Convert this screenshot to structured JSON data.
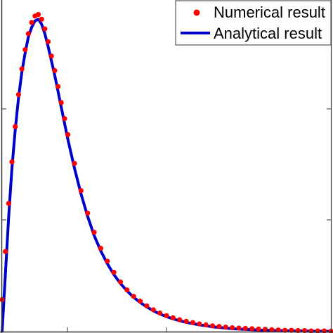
{
  "chart_data": {
    "type": "line",
    "title": "",
    "xlabel": "",
    "ylabel": "",
    "xlim": [
      0,
      1
    ],
    "ylim": [
      0,
      1
    ],
    "grid": false,
    "legend_position": "top-right",
    "series": [
      {
        "name": "Numerical result",
        "kind": "scatter",
        "color": "#ff0000",
        "x": [
          0.0,
          0.01,
          0.02,
          0.03,
          0.04,
          0.05,
          0.06,
          0.07,
          0.08,
          0.09,
          0.1,
          0.11,
          0.12,
          0.13,
          0.14,
          0.15,
          0.16,
          0.17,
          0.18,
          0.19,
          0.2,
          0.22,
          0.24,
          0.26,
          0.28,
          0.3,
          0.32,
          0.34,
          0.36,
          0.38,
          0.4,
          0.42,
          0.44,
          0.46,
          0.48,
          0.5,
          0.52,
          0.54,
          0.56,
          0.58,
          0.6,
          0.62,
          0.64,
          0.66,
          0.68,
          0.7,
          0.72,
          0.74,
          0.76,
          0.78,
          0.8,
          0.82,
          0.84,
          0.86,
          0.88,
          0.9,
          0.92,
          0.94,
          0.96,
          0.98,
          1.0
        ],
        "y": [
          0.1,
          0.25,
          0.4,
          0.53,
          0.64,
          0.74,
          0.82,
          0.88,
          0.93,
          0.965,
          0.985,
          0.99,
          0.975,
          0.945,
          0.905,
          0.86,
          0.815,
          0.765,
          0.715,
          0.665,
          0.615,
          0.525,
          0.44,
          0.37,
          0.31,
          0.26,
          0.22,
          0.185,
          0.155,
          0.13,
          0.11,
          0.095,
          0.08,
          0.068,
          0.058,
          0.05,
          0.043,
          0.037,
          0.032,
          0.028,
          0.024,
          0.021,
          0.018,
          0.016,
          0.014,
          0.012,
          0.011,
          0.01,
          0.009,
          0.008,
          0.007,
          0.006,
          0.005,
          0.004,
          0.004,
          0.003,
          0.003,
          0.002,
          0.002,
          0.002,
          0.001
        ]
      },
      {
        "name": "Analytical result",
        "kind": "line",
        "color": "#0000cc",
        "x": [
          0.0,
          0.01,
          0.02,
          0.03,
          0.04,
          0.05,
          0.06,
          0.07,
          0.08,
          0.09,
          0.1,
          0.11,
          0.12,
          0.13,
          0.14,
          0.15,
          0.16,
          0.17,
          0.18,
          0.19,
          0.2,
          0.22,
          0.24,
          0.26,
          0.28,
          0.3,
          0.32,
          0.34,
          0.36,
          0.38,
          0.4,
          0.42,
          0.44,
          0.46,
          0.48,
          0.5,
          0.52,
          0.54,
          0.56,
          0.58,
          0.6,
          0.62,
          0.64,
          0.66,
          0.68,
          0.7,
          0.72,
          0.74,
          0.76,
          0.78,
          0.8,
          0.82,
          0.84,
          0.86,
          0.88,
          0.9,
          0.92,
          0.94,
          0.96,
          0.98,
          1.0
        ],
        "y": [
          0.0,
          0.18,
          0.36,
          0.51,
          0.63,
          0.73,
          0.81,
          0.87,
          0.92,
          0.95,
          0.97,
          0.975,
          0.96,
          0.93,
          0.89,
          0.845,
          0.8,
          0.75,
          0.7,
          0.65,
          0.6,
          0.51,
          0.43,
          0.36,
          0.3,
          0.252,
          0.212,
          0.178,
          0.15,
          0.127,
          0.107,
          0.091,
          0.077,
          0.065,
          0.055,
          0.047,
          0.04,
          0.034,
          0.029,
          0.025,
          0.021,
          0.018,
          0.015,
          0.013,
          0.011,
          0.009,
          0.008,
          0.007,
          0.006,
          0.005,
          0.004,
          0.004,
          0.003,
          0.003,
          0.002,
          0.002,
          0.002,
          0.001,
          0.001,
          0.001,
          0.001
        ]
      }
    ]
  },
  "legend": {
    "entries": [
      {
        "label": "Numerical result",
        "marker": "dot",
        "color": "#ff0000"
      },
      {
        "label": "Analytical result",
        "marker": "line",
        "color": "#0000cc"
      }
    ]
  }
}
